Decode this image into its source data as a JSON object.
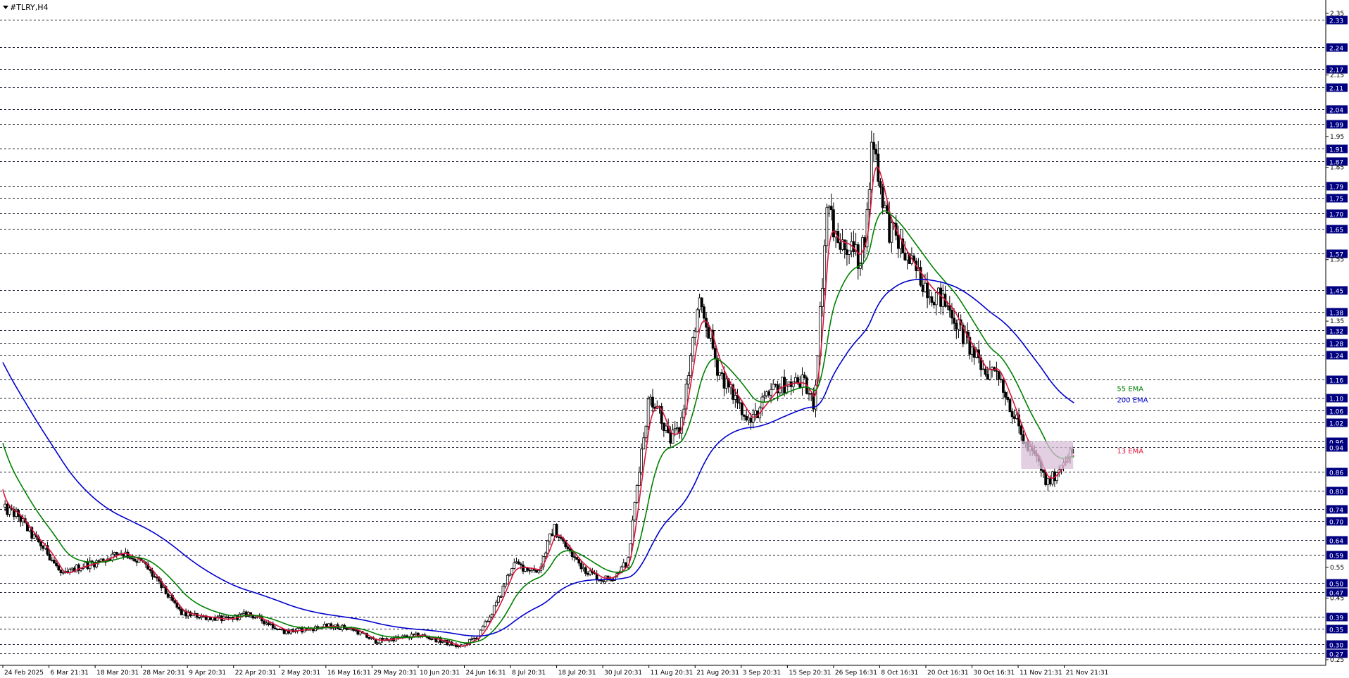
{
  "chart_data": {
    "type": "candlestick",
    "title": "#TLRY,H4",
    "ylim": [
      0.25,
      2.35
    ],
    "grid": true,
    "price_levels": [
      2.33,
      2.24,
      2.17,
      2.11,
      2.04,
      1.99,
      1.91,
      1.87,
      1.79,
      1.75,
      1.7,
      1.65,
      1.57,
      1.45,
      1.38,
      1.32,
      1.28,
      1.24,
      1.16,
      1.1,
      1.06,
      1.02,
      0.96,
      0.94,
      0.86,
      0.8,
      0.74,
      0.7,
      0.64,
      0.59,
      0.5,
      0.47,
      0.39,
      0.35,
      0.3,
      0.27
    ],
    "price_level_labels": [
      "2.33",
      "2.24",
      "2.17",
      "2.11",
      "2.04",
      "1.99",
      "1.91",
      "1.87",
      "1.79",
      "1.75",
      "1.70",
      "1.65",
      "1.57",
      "1.45",
      "1.38",
      "1.32",
      "1.28",
      "1.24",
      "1.16",
      "1.10",
      "1.06",
      "1.02",
      "0.96",
      "0.94",
      "0.86",
      "0.80",
      "0.74",
      "0.70",
      "0.64",
      "0.59",
      "0.50",
      "0.47",
      "0.39",
      "0.35",
      "0.30",
      "0.27"
    ],
    "y_ticks": [
      2.35,
      2.15,
      1.95,
      1.85,
      1.55,
      1.35,
      0.55,
      0.45,
      0.25
    ],
    "y_tick_labels": [
      "2.35",
      "2.15",
      "1.95",
      "1.85",
      "1.55",
      "1.35",
      "0.55",
      "0.45",
      "0.25"
    ],
    "x_tick_labels": [
      "24 Feb 2025",
      "6 Mar 21:31",
      "18 Mar 20:31",
      "28 Mar 20:31",
      "9 Apr 20:31",
      "22 Apr 20:31",
      "2 May 20:31",
      "16 May 16:31",
      "29 May 20:31",
      "10 Jun 20:31",
      "24 Jun 16:31",
      "8 Jul 20:31",
      "18 Jul 20:31",
      "30 Jul 20:31",
      "11 Aug 20:31",
      "21 Aug 20:31",
      "3 Sep 20:31",
      "15 Sep 20:31",
      "26 Sep 16:31",
      "8 Oct 16:31",
      "20 Oct 16:31",
      "30 Oct 16:31",
      "11 Nov 21:31",
      "21 Nov 21:31"
    ],
    "x_tick_index": [
      0,
      62,
      124,
      186,
      248,
      310,
      372,
      434,
      496,
      558,
      620,
      682,
      744,
      806,
      868,
      930,
      992,
      1054,
      1116,
      1178,
      1240,
      1302,
      1364,
      1426
    ],
    "bar_count": 1450,
    "close_anchors": [
      [
        0,
        0.74
      ],
      [
        20,
        0.72
      ],
      [
        40,
        0.65
      ],
      [
        60,
        0.6
      ],
      [
        80,
        0.52
      ],
      [
        100,
        0.55
      ],
      [
        130,
        0.57
      ],
      [
        160,
        0.6
      ],
      [
        190,
        0.56
      ],
      [
        215,
        0.48
      ],
      [
        240,
        0.4
      ],
      [
        270,
        0.39
      ],
      [
        300,
        0.38
      ],
      [
        330,
        0.4
      ],
      [
        355,
        0.37
      ],
      [
        380,
        0.34
      ],
      [
        410,
        0.35
      ],
      [
        440,
        0.36
      ],
      [
        470,
        0.35
      ],
      [
        500,
        0.31
      ],
      [
        530,
        0.32
      ],
      [
        560,
        0.33
      ],
      [
        590,
        0.31
      ],
      [
        615,
        0.29
      ],
      [
        640,
        0.33
      ],
      [
        665,
        0.44
      ],
      [
        685,
        0.56
      ],
      [
        700,
        0.55
      ],
      [
        720,
        0.54
      ],
      [
        740,
        0.68
      ],
      [
        758,
        0.61
      ],
      [
        775,
        0.56
      ],
      [
        790,
        0.53
      ],
      [
        805,
        0.51
      ],
      [
        820,
        0.52
      ],
      [
        840,
        0.57
      ],
      [
        855,
        0.88
      ],
      [
        868,
        1.1
      ],
      [
        880,
        1.08
      ],
      [
        895,
        0.96
      ],
      [
        910,
        1.0
      ],
      [
        922,
        1.2
      ],
      [
        935,
        1.4
      ],
      [
        948,
        1.32
      ],
      [
        960,
        1.2
      ],
      [
        975,
        1.13
      ],
      [
        990,
        1.08
      ],
      [
        1005,
        1.02
      ],
      [
        1020,
        1.08
      ],
      [
        1040,
        1.14
      ],
      [
        1060,
        1.15
      ],
      [
        1075,
        1.15
      ],
      [
        1090,
        1.08
      ],
      [
        1100,
        1.45
      ],
      [
        1108,
        1.75
      ],
      [
        1120,
        1.6
      ],
      [
        1135,
        1.6
      ],
      [
        1150,
        1.55
      ],
      [
        1160,
        1.65
      ],
      [
        1168,
        1.95
      ],
      [
        1172,
        1.9
      ],
      [
        1178,
        1.8
      ],
      [
        1190,
        1.65
      ],
      [
        1200,
        1.62
      ],
      [
        1215,
        1.55
      ],
      [
        1230,
        1.5
      ],
      [
        1245,
        1.45
      ],
      [
        1260,
        1.42
      ],
      [
        1275,
        1.38
      ],
      [
        1290,
        1.3
      ],
      [
        1305,
        1.24
      ],
      [
        1320,
        1.18
      ],
      [
        1335,
        1.2
      ],
      [
        1350,
        1.1
      ],
      [
        1365,
        1.0
      ],
      [
        1375,
        0.94
      ],
      [
        1390,
        0.9
      ],
      [
        1402,
        0.82
      ],
      [
        1410,
        0.84
      ],
      [
        1420,
        0.88
      ],
      [
        1430,
        0.92
      ]
    ],
    "series": [
      {
        "name": "13 EMA",
        "period": 13,
        "color": "#dc143c"
      },
      {
        "name": "55 EMA",
        "period": 55,
        "color": "#008000"
      },
      {
        "name": "200 EMA",
        "period": 200,
        "color": "#0000cd"
      }
    ],
    "highlight_box": {
      "from_bar": 1368,
      "to_bar": 1438,
      "y_low": 0.87,
      "y_high": 0.96,
      "color": "#d8bfd8"
    }
  }
}
